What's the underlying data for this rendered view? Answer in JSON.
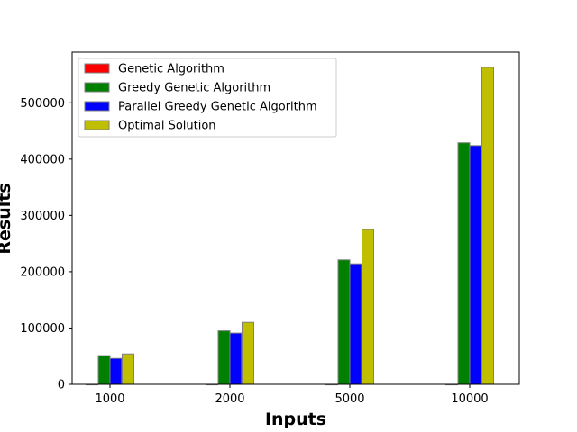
{
  "chart_data": {
    "type": "bar",
    "title": "",
    "xlabel": "Inputs",
    "ylabel": "Results",
    "categories": [
      "1000",
      "2000",
      "5000",
      "10000"
    ],
    "ylim": [
      0,
      590000
    ],
    "yticks": [
      0,
      100000,
      200000,
      300000,
      400000,
      500000
    ],
    "ytick_labels": [
      "0",
      "100000",
      "200000",
      "300000",
      "400000",
      "500000"
    ],
    "grid": false,
    "legend_position": "top-left",
    "series": [
      {
        "name": "Genetic Algorithm",
        "color": "#ff0000",
        "values": [
          0,
          0,
          0,
          0
        ]
      },
      {
        "name": "Greedy Genetic Algorithm",
        "color": "#008000",
        "values": [
          51000,
          95000,
          221000,
          429000
        ]
      },
      {
        "name": "Parallel Greedy Genetic Algorithm",
        "color": "#0000ff",
        "values": [
          46000,
          91000,
          214000,
          424000
        ]
      },
      {
        "name": "Optimal Solution",
        "color": "#bfbf00",
        "values": [
          54000,
          110000,
          275000,
          563000
        ]
      }
    ]
  }
}
